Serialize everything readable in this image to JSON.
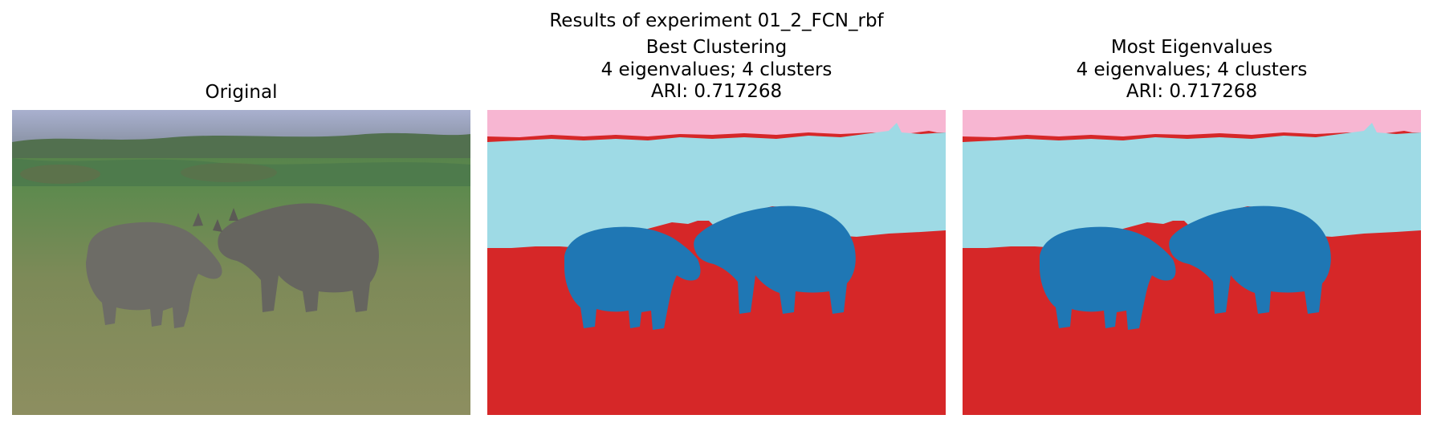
{
  "figure": {
    "suptitle": "Results of experiment 01_2_FCN_rbf"
  },
  "panels": [
    {
      "id": "original",
      "lines": [
        "Original"
      ]
    },
    {
      "id": "best",
      "lines": [
        "Best Clustering",
        "4 eigenvalues; 4 clusters",
        "ARI: 0.717268"
      ]
    },
    {
      "id": "most",
      "lines": [
        "Most Eigenvalues",
        "4 eigenvalues; 4 clusters",
        "ARI: 0.717268"
      ]
    }
  ],
  "cluster_colors": {
    "sky": "#f7b6d2",
    "far_field": "#9edae5",
    "animals": "#1f77b4",
    "grass": "#d62728"
  }
}
